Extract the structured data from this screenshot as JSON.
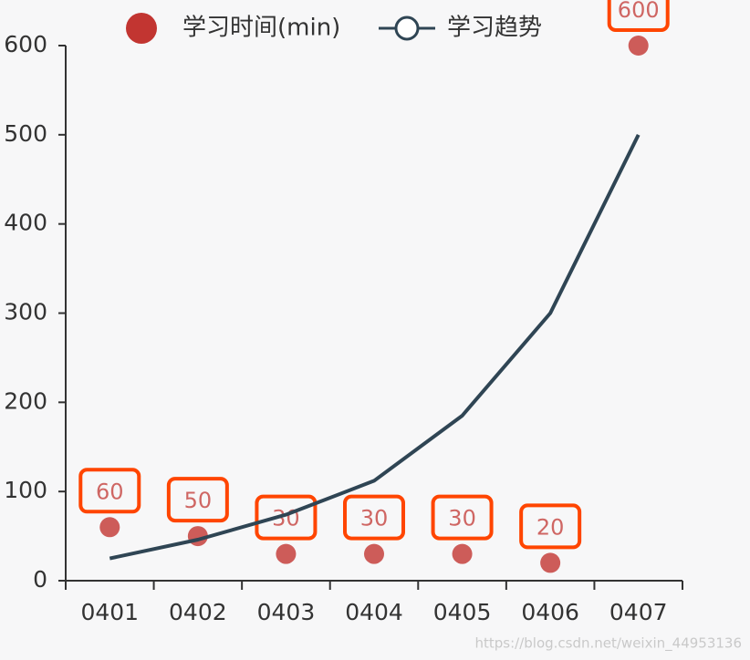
{
  "chart_data": {
    "type": "combo",
    "categories": [
      "0401",
      "0402",
      "0403",
      "0404",
      "0405",
      "0406",
      "0407"
    ],
    "series": [
      {
        "name": "学习时间(min)",
        "type": "scatter",
        "color": "#c23531",
        "values": [
          60,
          50,
          30,
          30,
          30,
          20,
          600
        ]
      },
      {
        "name": "学习趋势",
        "type": "line",
        "color": "#2f4554",
        "values": [
          25,
          46,
          74,
          112,
          185,
          300,
          500
        ]
      }
    ],
    "ylim": [
      0,
      600
    ],
    "yticks": [
      0,
      100,
      200,
      300,
      400,
      500,
      600
    ],
    "watermark": "https://blog.csdn.net/weixin_44953136"
  }
}
